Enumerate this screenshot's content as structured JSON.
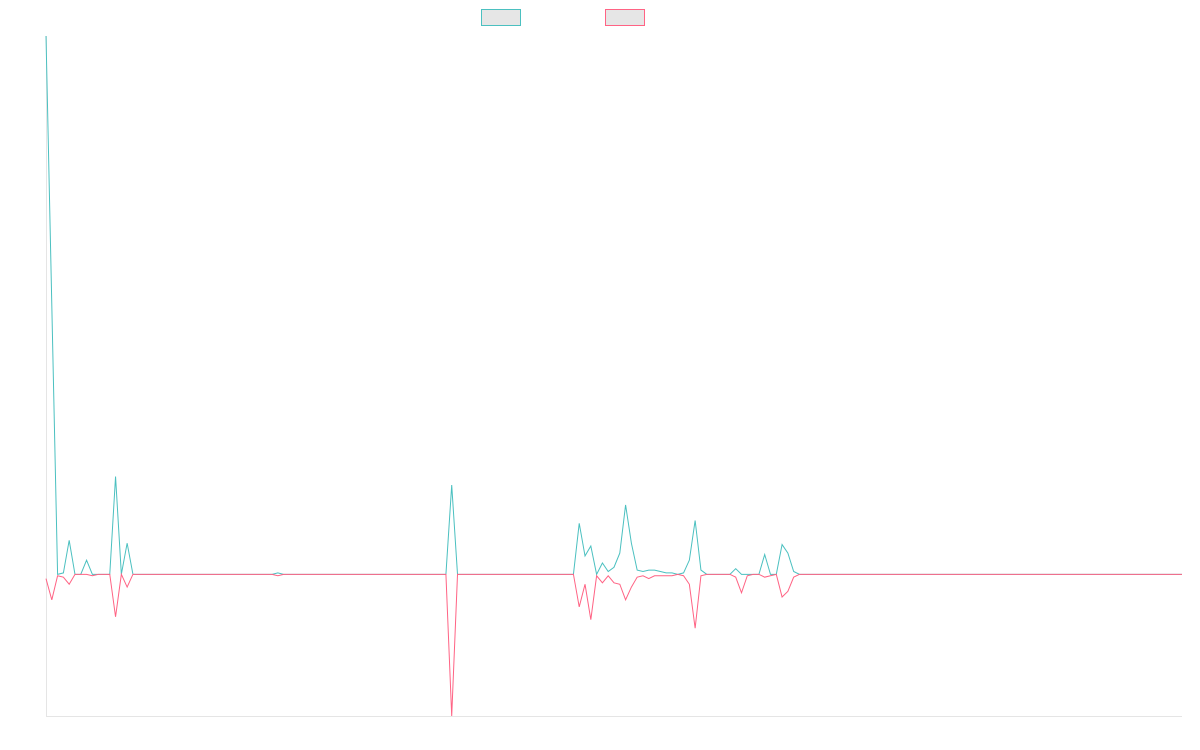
{
  "chart_data": {
    "type": "line",
    "ylim": [
      -100,
      380
    ],
    "series": [
      {
        "color": "#4bc0c0",
        "values": [
          380,
          190,
          0,
          1,
          24,
          0,
          0,
          10,
          0,
          0,
          0,
          0,
          69,
          0,
          22,
          0,
          0,
          0,
          0,
          0,
          0,
          0,
          0,
          0,
          0,
          0,
          0,
          0,
          0,
          0,
          0,
          0,
          0,
          0,
          0,
          0,
          0,
          0,
          0,
          0,
          1,
          0,
          0,
          0,
          0,
          0,
          0,
          0,
          0,
          0,
          0,
          0,
          0,
          0,
          0,
          0,
          0,
          0,
          0,
          0,
          0,
          0,
          0,
          0,
          0,
          0,
          0,
          0,
          0,
          0,
          63,
          0,
          0,
          0,
          0,
          0,
          0,
          0,
          0,
          0,
          0,
          0,
          0,
          0,
          0,
          0,
          0,
          0,
          0,
          0,
          0,
          0,
          36,
          13,
          20,
          0,
          8,
          2,
          5,
          15,
          49,
          22,
          3,
          2,
          3,
          3,
          2,
          1,
          1,
          0,
          1,
          10,
          38,
          3,
          0,
          0,
          0,
          0,
          0,
          4,
          0,
          0,
          0,
          0,
          14,
          0,
          0,
          21,
          15,
          2,
          0,
          0,
          0,
          0,
          0,
          0,
          0,
          0,
          0,
          0,
          0,
          0,
          0,
          0,
          0,
          0,
          0,
          0,
          0,
          0,
          0,
          0,
          0,
          0,
          0,
          0,
          0,
          0,
          0,
          0,
          0,
          0,
          0,
          0,
          0,
          0,
          0,
          0,
          0,
          0,
          0,
          0,
          0,
          0,
          0,
          0,
          0,
          0,
          0,
          0,
          0,
          0,
          0,
          0,
          0,
          0,
          0,
          0,
          0,
          0,
          0,
          0,
          0,
          0,
          0,
          0,
          0
        ]
      },
      {
        "color": "#ff6384",
        "values": [
          -3,
          -18,
          -1,
          -2,
          -7,
          0,
          0,
          0,
          -1,
          0,
          0,
          0,
          -30,
          0,
          -9,
          0,
          0,
          0,
          0,
          0,
          0,
          0,
          0,
          0,
          0,
          0,
          0,
          0,
          0,
          0,
          0,
          0,
          0,
          0,
          0,
          0,
          0,
          0,
          0,
          0,
          -1,
          0,
          0,
          0,
          0,
          0,
          0,
          0,
          0,
          0,
          0,
          0,
          0,
          0,
          0,
          0,
          0,
          0,
          0,
          0,
          0,
          0,
          0,
          0,
          0,
          0,
          0,
          0,
          0,
          0,
          -100,
          0,
          0,
          0,
          0,
          0,
          0,
          0,
          0,
          0,
          0,
          0,
          0,
          0,
          0,
          0,
          0,
          0,
          0,
          0,
          0,
          0,
          -23,
          -7,
          -32,
          -1,
          -6,
          -1,
          -6,
          -7,
          -18,
          -9,
          -2,
          -1,
          -3,
          -1,
          -1,
          -1,
          -1,
          0,
          -1,
          -7,
          -38,
          -1,
          0,
          0,
          0,
          0,
          0,
          -2,
          -13,
          -1,
          0,
          0,
          -2,
          -1,
          0,
          -16,
          -12,
          -2,
          0,
          0,
          0,
          0,
          0,
          0,
          0,
          0,
          0,
          0,
          0,
          0,
          0,
          0,
          0,
          0,
          0,
          0,
          0,
          0,
          0,
          0,
          0,
          0,
          0,
          0,
          0,
          0,
          0,
          0,
          0,
          0,
          0,
          0,
          0,
          0,
          0,
          0,
          0,
          0,
          0,
          0,
          0,
          0,
          0,
          0,
          0,
          0,
          0,
          0,
          0,
          0,
          0,
          0,
          0,
          0,
          0,
          0,
          0,
          0,
          0,
          0,
          0,
          0,
          0,
          0,
          0
        ]
      }
    ]
  }
}
